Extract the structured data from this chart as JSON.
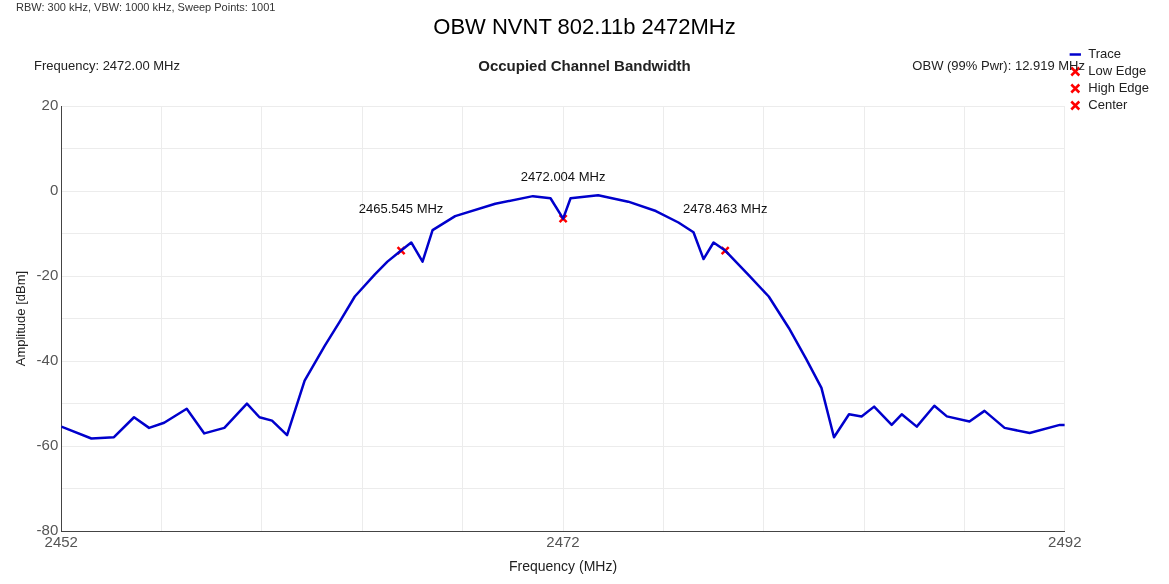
{
  "chart_data": {
    "type": "line",
    "title": "OBW NVNT 802.11b 2472MHz",
    "subtitle": "Occupied Channel Bandwidth",
    "xlabel": "Frequency (MHz)",
    "ylabel": "Amplitude [dBm]",
    "annotations": [
      "RBW: 300 kHz, VBW: 1000 kHz, Sweep Points: 1001",
      "Frequency: 2472.00 MHz",
      "OBW (99% Pwr): 12.919 MHz",
      {
        "text": "2465.545 MHz",
        "x": 2465.545,
        "y": -14
      },
      {
        "text": "2472.004 MHz",
        "x": 2472.004,
        "y": -6.5
      },
      {
        "text": "2478.463 MHz",
        "x": 2478.463,
        "y": -14
      }
    ],
    "series": [
      {
        "name": "Trace",
        "color": "#0000cc",
        "marker": "none",
        "x": [
          2452,
          2453.2,
          2454.1,
          2454.9,
          2455.5,
          2456.1,
          2457.0,
          2457.7,
          2458.5,
          2459.4,
          2459.9,
          2460.4,
          2461.0,
          2461.7,
          2462.5,
          2463.1,
          2463.7,
          2464.5,
          2465.0,
          2465.545,
          2465.95,
          2466.4,
          2466.8,
          2467.7,
          2469.3,
          2470.8,
          2471.5,
          2472.004,
          2472.3,
          2473.4,
          2474.6,
          2475.7,
          2476.6,
          2477.2,
          2477.6,
          2478.0,
          2478.463,
          2479.4,
          2480.2,
          2481.0,
          2481.7,
          2482.3,
          2482.8,
          2483.4,
          2483.9,
          2484.4,
          2485.1,
          2485.5,
          2486.1,
          2486.8,
          2487.3,
          2488.2,
          2488.8,
          2489.6,
          2490.6,
          2491.8,
          2492
        ],
        "values": [
          -55.4,
          -58.2,
          -57.9,
          -53.2,
          -55.7,
          -54.5,
          -51.2,
          -57,
          -55.7,
          -50,
          -53.2,
          -54,
          -57.4,
          -44.6,
          -36.4,
          -30.7,
          -24.8,
          -19.6,
          -16.6,
          -14,
          -12.1,
          -16.6,
          -9.2,
          -5.9,
          -3,
          -1.2,
          -1.7,
          -6.5,
          -1.7,
          -1,
          -2.5,
          -4.7,
          -7.4,
          -9.7,
          -16,
          -12.1,
          -14,
          -19.8,
          -24.8,
          -32.2,
          -39.6,
          -46.3,
          -57.9,
          -52.5,
          -53,
          -50.7,
          -55,
          -52.5,
          -55.4,
          -50.5,
          -53,
          -54.2,
          -51.7,
          -55.7,
          -56.9,
          -55,
          -55
        ]
      },
      {
        "name": "Low Edge",
        "type": "scatter",
        "color": "#ff0000",
        "marker": "cross",
        "x": [
          2465.545
        ],
        "values": [
          -14
        ]
      },
      {
        "name": "High Edge",
        "type": "scatter",
        "color": "#ff0000",
        "marker": "cross",
        "x": [
          2478.463
        ],
        "values": [
          -14
        ]
      },
      {
        "name": "Center",
        "type": "scatter",
        "color": "#ff0000",
        "marker": "cross",
        "x": [
          2472.004
        ],
        "values": [
          -6.5
        ]
      }
    ],
    "xlim": [
      2452,
      2492
    ],
    "xticks": [
      2452,
      {
        "value": 2456,
        "label": null
      },
      {
        "value": 2460,
        "label": null
      },
      {
        "value": 2464,
        "label": null
      },
      {
        "value": 2468,
        "label": null
      },
      2472,
      {
        "value": 2476,
        "label": null
      },
      {
        "value": 2480,
        "label": null
      },
      {
        "value": 2484,
        "label": null
      },
      {
        "value": 2488,
        "label": null
      },
      2492
    ],
    "ylim": [
      -80,
      20
    ],
    "yticks": [
      -80,
      {
        "value": -70,
        "label": null
      },
      -60,
      {
        "value": -50,
        "label": null
      },
      -40,
      {
        "value": -30,
        "label": null
      },
      -20,
      {
        "value": -10,
        "label": null
      },
      0,
      {
        "value": 10,
        "label": null
      },
      20
    ],
    "grid": true,
    "legend": "top right",
    "line_style": "solid"
  }
}
